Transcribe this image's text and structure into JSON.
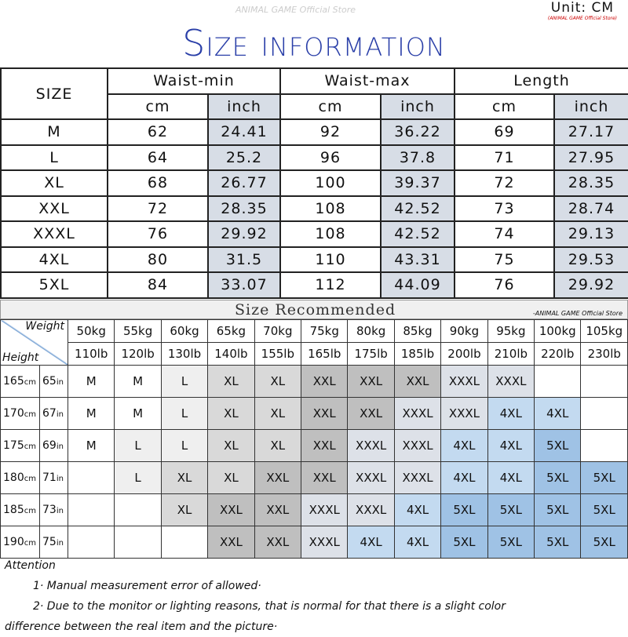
{
  "unit": "Unit: CM",
  "unit_sub": "(ANIMAL GAME Official Store)",
  "title": "Size information",
  "watermark": "ANIMAL GAME Official Store",
  "size_table": {
    "size_header": "SIZE",
    "groups": [
      "Waist-min",
      "Waist-max",
      "Length"
    ],
    "units": [
      "cm",
      "inch",
      "cm",
      "inch",
      "cm",
      "inch"
    ],
    "rows": [
      [
        "M",
        "62",
        "24.41",
        "92",
        "36.22",
        "69",
        "27.17"
      ],
      [
        "L",
        "64",
        "25.2",
        "96",
        "37.8",
        "71",
        "27.95"
      ],
      [
        "XL",
        "68",
        "26.77",
        "100",
        "39.37",
        "72",
        "28.35"
      ],
      [
        "XXL",
        "72",
        "28.35",
        "108",
        "42.52",
        "73",
        "28.74"
      ],
      [
        "XXXL",
        "76",
        "29.92",
        "108",
        "42.52",
        "74",
        "29.13"
      ],
      [
        "4XL",
        "80",
        "31.5",
        "110",
        "43.31",
        "75",
        "29.53"
      ],
      [
        "5XL",
        "84",
        "33.07",
        "112",
        "44.09",
        "76",
        "29.92"
      ]
    ]
  },
  "recommended": {
    "title": "Size Recommended",
    "store": "-ANIMAL GAME Official Store",
    "weight_label": "Weight",
    "height_label": "Height",
    "kg": [
      "50kg",
      "55kg",
      "60kg",
      "65kg",
      "70kg",
      "75kg",
      "80kg",
      "85kg",
      "90kg",
      "95kg",
      "100kg",
      "105kg"
    ],
    "lb": [
      "110lb",
      "120lb",
      "130lb",
      "140lb",
      "155lb",
      "165lb",
      "175lb",
      "185lb",
      "200lb",
      "210lb",
      "220lb",
      "230lb"
    ],
    "rows": [
      {
        "cm": "165",
        "in": "65",
        "sizes": [
          "M",
          "M",
          "L",
          "XL",
          "XL",
          "XXL",
          "XXL",
          "XXL",
          "XXXL",
          "XXXL",
          "",
          ""
        ]
      },
      {
        "cm": "170",
        "in": "67",
        "sizes": [
          "M",
          "M",
          "L",
          "XL",
          "XL",
          "XXL",
          "XXL",
          "XXXL",
          "XXXL",
          "4XL",
          "4XL",
          ""
        ]
      },
      {
        "cm": "175",
        "in": "69",
        "sizes": [
          "M",
          "L",
          "L",
          "XL",
          "XL",
          "XXL",
          "XXXL",
          "XXXL",
          "4XL",
          "4XL",
          "5XL",
          ""
        ]
      },
      {
        "cm": "180",
        "in": "71",
        "sizes": [
          "",
          "L",
          "XL",
          "XL",
          "XXL",
          "XXL",
          "XXXL",
          "XXXL",
          "4XL",
          "4XL",
          "5XL",
          "5XL"
        ]
      },
      {
        "cm": "185",
        "in": "73",
        "sizes": [
          "",
          "",
          "XL",
          "XXL",
          "XXL",
          "XXXL",
          "XXXL",
          "4XL",
          "5XL",
          "5XL",
          "5XL",
          "5XL"
        ]
      },
      {
        "cm": "190",
        "in": "75",
        "sizes": [
          "",
          "",
          "",
          "XXL",
          "XXL",
          "XXXL",
          "4XL",
          "4XL",
          "5XL",
          "5XL",
          "5XL",
          "5XL"
        ]
      }
    ],
    "cm_unit": "cm",
    "in_unit": "in",
    "size_colors": {
      "M": "#ffffff",
      "L": "#efefef",
      "XL": "#d9d9d9",
      "XXL": "#bfbfbf",
      "XXXL": "#dde1e8",
      "4XL": "#c3daf0",
      "5XL": "#9fc2e5",
      "": "#ffffff"
    }
  },
  "attention": {
    "heading": "Attention",
    "items": [
      "1· Manual measurement error of allowed·",
      "2·  Due to the monitor or lighting reasons, that is normal for that there is a slight color"
    ],
    "continuation": "difference between the real item and the picture·"
  }
}
